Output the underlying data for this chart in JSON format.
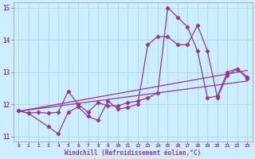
{
  "title": "",
  "xlabel": "Windchill (Refroidissement éolien,°C)",
  "background_color": "#cceeff",
  "grid_color": "#aadddd",
  "line_color": "#993399",
  "xlim": [
    -0.5,
    23.5
  ],
  "ylim": [
    10.85,
    15.15
  ],
  "yticks": [
    11,
    12,
    13,
    14,
    15
  ],
  "xticks": [
    0,
    1,
    2,
    3,
    4,
    5,
    6,
    7,
    8,
    9,
    10,
    11,
    12,
    13,
    14,
    15,
    16,
    17,
    18,
    19,
    20,
    21,
    22,
    23
  ],
  "series1_x": [
    0,
    1,
    3,
    4,
    5,
    6,
    7,
    8,
    9,
    10,
    11,
    12,
    13,
    14,
    15,
    16,
    17,
    18,
    19,
    20,
    21,
    22,
    23
  ],
  "series1_y": [
    11.8,
    11.72,
    11.3,
    11.08,
    11.75,
    11.92,
    11.62,
    11.5,
    12.1,
    11.85,
    11.9,
    12.0,
    13.85,
    14.1,
    14.1,
    13.85,
    13.85,
    14.45,
    13.65,
    12.2,
    12.9,
    13.1,
    12.85
  ],
  "series2_x": [
    0,
    1,
    2,
    3,
    4,
    5,
    6,
    7,
    8,
    9,
    10,
    11,
    12,
    13,
    14,
    15,
    16,
    17,
    18,
    19,
    20,
    21,
    22,
    23
  ],
  "series2_y": [
    11.8,
    11.72,
    11.75,
    11.72,
    11.75,
    12.4,
    12.0,
    11.75,
    12.05,
    11.95,
    11.95,
    12.05,
    12.1,
    12.2,
    12.35,
    15.0,
    14.7,
    14.4,
    13.65,
    12.2,
    12.25,
    13.0,
    13.1,
    12.8
  ],
  "series3_x": [
    0,
    23
  ],
  "series3_y": [
    11.78,
    12.72
  ],
  "series4_x": [
    0,
    23
  ],
  "series4_y": [
    11.78,
    13.05
  ]
}
